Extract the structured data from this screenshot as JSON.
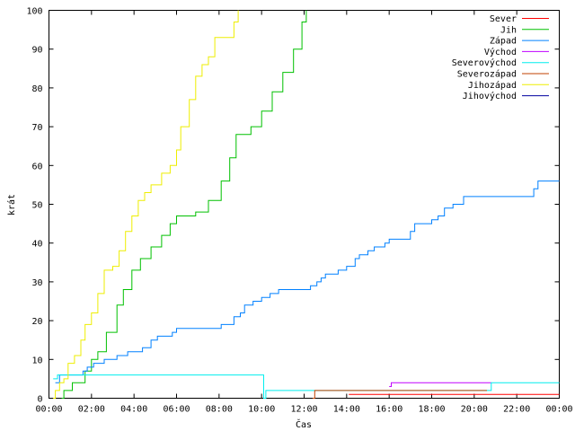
{
  "chart_data": {
    "type": "line",
    "xlabel": "Čas",
    "ylabel": "krát",
    "xlim": [
      0,
      24
    ],
    "ylim": [
      0,
      100
    ],
    "x_ticks": [
      {
        "value": 0,
        "label": "00:00"
      },
      {
        "value": 2,
        "label": "02:00"
      },
      {
        "value": 4,
        "label": "04:00"
      },
      {
        "value": 6,
        "label": "06:00"
      },
      {
        "value": 8,
        "label": "08:00"
      },
      {
        "value": 10,
        "label": "10:00"
      },
      {
        "value": 12,
        "label": "12:00"
      },
      {
        "value": 14,
        "label": "14:00"
      },
      {
        "value": 16,
        "label": "16:00"
      },
      {
        "value": 18,
        "label": "18:00"
      },
      {
        "value": 20,
        "label": "20:00"
      },
      {
        "value": 22,
        "label": "22:00"
      },
      {
        "value": 24,
        "label": "00:00"
      }
    ],
    "y_ticks": [
      0,
      10,
      20,
      30,
      40,
      50,
      60,
      70,
      80,
      90,
      100
    ],
    "grid": false,
    "legend_position": "top-right",
    "series": [
      {
        "name": "Sever",
        "color": "#ff0000",
        "points": [
          [
            14.1,
            1
          ],
          [
            24,
            1
          ]
        ]
      },
      {
        "name": "Jih",
        "color": "#00c000",
        "points": [
          [
            0.6,
            0
          ],
          [
            0.7,
            2
          ],
          [
            1.1,
            4
          ],
          [
            1.7,
            7
          ],
          [
            2.0,
            10
          ],
          [
            2.3,
            12
          ],
          [
            2.7,
            17
          ],
          [
            3.2,
            24
          ],
          [
            3.5,
            28
          ],
          [
            3.9,
            33
          ],
          [
            4.3,
            36
          ],
          [
            4.8,
            39
          ],
          [
            5.3,
            42
          ],
          [
            5.7,
            45
          ],
          [
            6.0,
            47
          ],
          [
            6.9,
            48
          ],
          [
            7.5,
            51
          ],
          [
            8.1,
            56
          ],
          [
            8.5,
            62
          ],
          [
            8.8,
            68
          ],
          [
            9.5,
            70
          ],
          [
            10.0,
            74
          ],
          [
            10.5,
            79
          ],
          [
            11.0,
            84
          ],
          [
            11.5,
            90
          ],
          [
            11.9,
            97
          ],
          [
            12.1,
            100
          ]
        ]
      },
      {
        "name": "Západ",
        "color": "#0080ff",
        "points": [
          [
            0.3,
            4
          ],
          [
            0.5,
            6
          ],
          [
            1.6,
            7
          ],
          [
            1.8,
            8
          ],
          [
            2.1,
            9
          ],
          [
            2.6,
            10
          ],
          [
            3.2,
            11
          ],
          [
            3.7,
            12
          ],
          [
            4.4,
            13
          ],
          [
            4.8,
            15
          ],
          [
            5.1,
            16
          ],
          [
            5.8,
            17
          ],
          [
            6.0,
            18
          ],
          [
            8.1,
            19
          ],
          [
            8.7,
            21
          ],
          [
            9.0,
            22
          ],
          [
            9.2,
            24
          ],
          [
            9.6,
            25
          ],
          [
            10.0,
            26
          ],
          [
            10.4,
            27
          ],
          [
            10.8,
            28
          ],
          [
            12.3,
            29
          ],
          [
            12.6,
            30
          ],
          [
            12.8,
            31
          ],
          [
            13.0,
            32
          ],
          [
            13.6,
            33
          ],
          [
            14.0,
            34
          ],
          [
            14.4,
            36
          ],
          [
            14.6,
            37
          ],
          [
            15.0,
            38
          ],
          [
            15.3,
            39
          ],
          [
            15.8,
            40
          ],
          [
            16.0,
            41
          ],
          [
            17.0,
            43
          ],
          [
            17.2,
            45
          ],
          [
            18.0,
            46
          ],
          [
            18.3,
            47
          ],
          [
            18.6,
            49
          ],
          [
            19.0,
            50
          ],
          [
            19.5,
            52
          ],
          [
            22.8,
            54
          ],
          [
            23.0,
            56
          ],
          [
            24,
            56
          ]
        ]
      },
      {
        "name": "Východ",
        "color": "#c000ff",
        "points": [
          [
            16.0,
            3
          ],
          [
            16.1,
            4
          ],
          [
            20.8,
            4
          ]
        ]
      },
      {
        "name": "Severovýchod",
        "color": "#00eeee",
        "points": [
          [
            0.2,
            5
          ],
          [
            0.4,
            6
          ],
          [
            1.8,
            6
          ],
          [
            10.1,
            0
          ],
          [
            10.2,
            2
          ],
          [
            20.6,
            2
          ],
          [
            20.8,
            4
          ],
          [
            24,
            4
          ]
        ]
      },
      {
        "name": "Severozápad",
        "color": "#c04000",
        "points": [
          [
            12.4,
            0
          ],
          [
            12.5,
            2
          ],
          [
            20.6,
            2
          ]
        ]
      },
      {
        "name": "Jihozápad",
        "color": "#eeee00",
        "points": [
          [
            0.2,
            0
          ],
          [
            0.3,
            2
          ],
          [
            0.5,
            4
          ],
          [
            0.7,
            5
          ],
          [
            0.9,
            9
          ],
          [
            1.2,
            11
          ],
          [
            1.5,
            15
          ],
          [
            1.7,
            19
          ],
          [
            2.0,
            22
          ],
          [
            2.3,
            27
          ],
          [
            2.6,
            33
          ],
          [
            3.0,
            34
          ],
          [
            3.3,
            38
          ],
          [
            3.6,
            43
          ],
          [
            3.9,
            47
          ],
          [
            4.2,
            51
          ],
          [
            4.5,
            53
          ],
          [
            4.8,
            55
          ],
          [
            5.3,
            58
          ],
          [
            5.7,
            60
          ],
          [
            6.0,
            64
          ],
          [
            6.2,
            70
          ],
          [
            6.6,
            77
          ],
          [
            6.9,
            83
          ],
          [
            7.2,
            86
          ],
          [
            7.5,
            88
          ],
          [
            7.8,
            93
          ],
          [
            8.5,
            93
          ],
          [
            8.7,
            97
          ],
          [
            8.9,
            100
          ]
        ]
      },
      {
        "name": "Jihovýchod",
        "color": "#0000a0",
        "points": []
      }
    ]
  }
}
